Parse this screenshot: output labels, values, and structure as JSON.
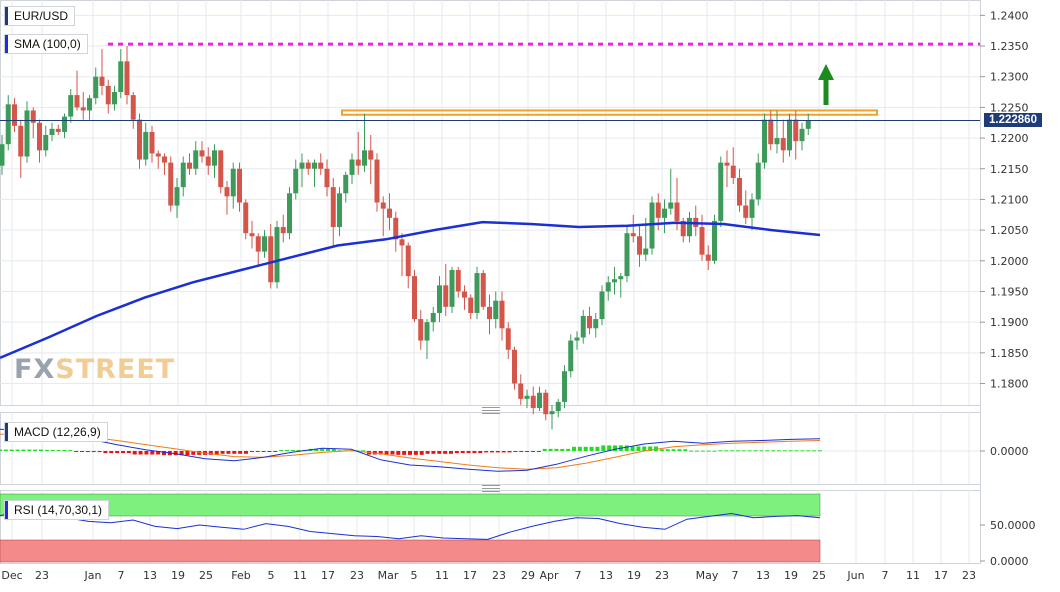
{
  "header": {
    "pair": "EUR/USD",
    "sma_label": "SMA (100,0)",
    "macd_label": "MACD (12,26,9)",
    "rsi_label": "RSI (14,70,30,1)",
    "current_price": "1.222860"
  },
  "logo": {
    "part1": "FX",
    "part2": "STREET"
  },
  "colors": {
    "bull": "#3d9a5a",
    "bear": "#d4564a",
    "sma": "#1a2fd6",
    "resistance_dotted": "#e628e6",
    "resistance_box": "#f0a12a",
    "arrow": "#1d8a1d",
    "price_line": "#1d3c78",
    "macd_line": "#1a2fd6",
    "signal_line": "#f07c1a",
    "hist_pos": "#22dd22",
    "hist_neg": "#ee1111",
    "rsi_line": "#1a2fd6",
    "rsi_ob": "#7ef07e",
    "rsi_os": "#f58a8a",
    "grid": "#e6e9ee"
  },
  "chart_data": [
    {
      "type": "candlestick",
      "title": "EUR/USD",
      "ylim": [
        1.1765,
        1.2425
      ],
      "y_ticks": [
        "1.2400",
        "1.2350",
        "1.2300",
        "1.2250",
        "1.2200",
        "1.2150",
        "1.2100",
        "1.2050",
        "1.2000",
        "1.1950",
        "1.1900",
        "1.1850",
        "1.1800"
      ],
      "x_ticks": [
        "Dec",
        "23",
        "Jan",
        "7",
        "13",
        "19",
        "25",
        "Feb",
        "5",
        "11",
        "17",
        "23",
        "Mar",
        "5",
        "11",
        "17",
        "23",
        "29",
        "Apr",
        "7",
        "13",
        "19",
        "23",
        "May",
        "7",
        "13",
        "19",
        "25",
        "Jun",
        "7",
        "11",
        "17",
        "23"
      ],
      "ohlc": [
        [
          1.2155,
          1.2205,
          1.214,
          1.219
        ],
        [
          1.219,
          1.227,
          1.218,
          1.2255
        ],
        [
          1.2255,
          1.2265,
          1.221,
          1.222
        ],
        [
          1.222,
          1.223,
          1.2135,
          1.217
        ],
        [
          1.217,
          1.226,
          1.216,
          1.2245
        ],
        [
          1.2245,
          1.225,
          1.22,
          1.2225
        ],
        [
          1.2225,
          1.223,
          1.216,
          1.218
        ],
        [
          1.218,
          1.222,
          1.217,
          1.2205
        ],
        [
          1.2205,
          1.2225,
          1.2195,
          1.2215
        ],
        [
          1.2215,
          1.2222,
          1.2205,
          1.221
        ],
        [
          1.221,
          1.224,
          1.22,
          1.2235
        ],
        [
          1.2235,
          1.228,
          1.2225,
          1.227
        ],
        [
          1.227,
          1.231,
          1.2245,
          1.225
        ],
        [
          1.225,
          1.2275,
          1.223,
          1.2245
        ],
        [
          1.2245,
          1.227,
          1.223,
          1.2265
        ],
        [
          1.2265,
          1.2315,
          1.2255,
          1.23
        ],
        [
          1.23,
          1.2345,
          1.227,
          1.2285
        ],
        [
          1.2285,
          1.2295,
          1.224,
          1.2255
        ],
        [
          1.2255,
          1.2285,
          1.2245,
          1.2275
        ],
        [
          1.2275,
          1.2345,
          1.2265,
          1.2325
        ],
        [
          1.2325,
          1.235,
          1.2255,
          1.227
        ],
        [
          1.227,
          1.2275,
          1.2215,
          1.223
        ],
        [
          1.223,
          1.224,
          1.215,
          1.2165
        ],
        [
          1.2165,
          1.2225,
          1.2155,
          1.221
        ],
        [
          1.221,
          1.222,
          1.216,
          1.2175
        ],
        [
          1.2175,
          1.218,
          1.215,
          1.217
        ],
        [
          1.217,
          1.2175,
          1.214,
          1.216
        ],
        [
          1.216,
          1.217,
          1.208,
          1.209
        ],
        [
          1.209,
          1.2135,
          1.207,
          1.212
        ],
        [
          1.212,
          1.217,
          1.2105,
          1.216
        ],
        [
          1.216,
          1.2175,
          1.214,
          1.215
        ],
        [
          1.215,
          1.2195,
          1.214,
          1.218
        ],
        [
          1.218,
          1.2195,
          1.216,
          1.217
        ],
        [
          1.217,
          1.2185,
          1.214,
          1.2155
        ],
        [
          1.2155,
          1.219,
          1.2135,
          1.218
        ],
        [
          1.218,
          1.218,
          1.211,
          1.212
        ],
        [
          1.212,
          1.213,
          1.2075,
          1.2105
        ],
        [
          1.2105,
          1.216,
          1.2085,
          1.215
        ],
        [
          1.215,
          1.216,
          1.208,
          1.2095
        ],
        [
          1.2095,
          1.21,
          1.2035,
          1.2045
        ],
        [
          1.2045,
          1.2065,
          1.202,
          1.204
        ],
        [
          1.204,
          1.2045,
          1.199,
          1.2015
        ],
        [
          1.2015,
          1.205,
          1.2005,
          1.204
        ],
        [
          1.204,
          1.206,
          1.1955,
          1.1965
        ],
        [
          1.1965,
          1.2065,
          1.1955,
          1.2055
        ],
        [
          1.2055,
          1.2075,
          1.203,
          1.2045
        ],
        [
          1.2045,
          1.212,
          1.2035,
          1.211
        ],
        [
          1.211,
          1.2165,
          1.21,
          1.215
        ],
        [
          1.215,
          1.2175,
          1.212,
          1.216
        ],
        [
          1.216,
          1.2165,
          1.214,
          1.215
        ],
        [
          1.215,
          1.2165,
          1.212,
          1.216
        ],
        [
          1.216,
          1.2175,
          1.214,
          1.215
        ],
        [
          1.215,
          1.2165,
          1.2105,
          1.212
        ],
        [
          1.212,
          1.2135,
          1.2025,
          1.2055
        ],
        [
          1.2055,
          1.212,
          1.204,
          1.211
        ],
        [
          1.211,
          1.2145,
          1.2095,
          1.214
        ],
        [
          1.214,
          1.2175,
          1.2125,
          1.2165
        ],
        [
          1.2165,
          1.221,
          1.214,
          1.2155
        ],
        [
          1.2155,
          1.224,
          1.2145,
          1.218
        ],
        [
          1.218,
          1.2205,
          1.2125,
          1.2165
        ],
        [
          1.2165,
          1.2175,
          1.208,
          1.2095
        ],
        [
          1.2095,
          1.2105,
          1.204,
          1.2085
        ],
        [
          1.2085,
          1.211,
          1.205,
          1.207
        ],
        [
          1.207,
          1.208,
          1.2015,
          1.2035
        ],
        [
          1.2035,
          1.2045,
          1.1975,
          1.2025
        ],
        [
          1.2025,
          1.203,
          1.1955,
          1.1975
        ],
        [
          1.1975,
          1.1985,
          1.19,
          1.1905
        ],
        [
          1.1905,
          1.192,
          1.1855,
          1.187
        ],
        [
          1.187,
          1.1905,
          1.184,
          1.19
        ],
        [
          1.19,
          1.1925,
          1.1885,
          1.1915
        ],
        [
          1.1915,
          1.1975,
          1.19,
          1.196
        ],
        [
          1.196,
          1.1995,
          1.191,
          1.1925
        ],
        [
          1.1925,
          1.199,
          1.1915,
          1.1985
        ],
        [
          1.1985,
          1.199,
          1.194,
          1.195
        ],
        [
          1.195,
          1.196,
          1.192,
          1.194
        ],
        [
          1.194,
          1.1945,
          1.1905,
          1.1915
        ],
        [
          1.1915,
          1.199,
          1.1905,
          1.198
        ],
        [
          1.198,
          1.1985,
          1.192,
          1.1925
        ],
        [
          1.1925,
          1.1945,
          1.188,
          1.1905
        ],
        [
          1.1905,
          1.195,
          1.189,
          1.1935
        ],
        [
          1.1935,
          1.195,
          1.187,
          1.189
        ],
        [
          1.189,
          1.19,
          1.184,
          1.1855
        ],
        [
          1.1855,
          1.186,
          1.179,
          1.18
        ],
        [
          1.18,
          1.1815,
          1.1765,
          1.1775
        ],
        [
          1.1775,
          1.179,
          1.176,
          1.178
        ],
        [
          1.178,
          1.1795,
          1.175,
          1.176
        ],
        [
          1.176,
          1.1795,
          1.1755,
          1.1785
        ],
        [
          1.1785,
          1.179,
          1.174,
          1.175
        ],
        [
          1.175,
          1.1765,
          1.1725,
          1.1755
        ],
        [
          1.1755,
          1.1775,
          1.1745,
          1.177
        ],
        [
          1.177,
          1.183,
          1.176,
          1.182
        ],
        [
          1.182,
          1.188,
          1.181,
          1.187
        ],
        [
          1.187,
          1.1885,
          1.1855,
          1.1875
        ],
        [
          1.1875,
          1.192,
          1.1865,
          1.191
        ],
        [
          1.191,
          1.1925,
          1.188,
          1.189
        ],
        [
          1.189,
          1.1915,
          1.1875,
          1.1905
        ],
        [
          1.1905,
          1.196,
          1.1895,
          1.195
        ],
        [
          1.195,
          1.1975,
          1.1935,
          1.1965
        ],
        [
          1.1965,
          1.199,
          1.1945,
          1.197
        ],
        [
          1.197,
          1.198,
          1.194,
          1.1975
        ],
        [
          1.1975,
          1.2055,
          1.1965,
          1.2045
        ],
        [
          1.2045,
          1.2075,
          1.203,
          1.204
        ],
        [
          1.204,
          1.206,
          1.199,
          1.201
        ],
        [
          1.201,
          1.207,
          1.2,
          1.202
        ],
        [
          1.202,
          1.2105,
          1.201,
          1.2095
        ],
        [
          1.2095,
          1.211,
          1.205,
          1.207
        ],
        [
          1.207,
          1.21,
          1.2045,
          1.2085
        ],
        [
          1.2085,
          1.215,
          1.2075,
          1.2095
        ],
        [
          1.2095,
          1.2135,
          1.205,
          1.2065
        ],
        [
          1.2065,
          1.207,
          1.203,
          1.204
        ],
        [
          1.204,
          1.208,
          1.203,
          1.207
        ],
        [
          1.207,
          1.209,
          1.204,
          1.2055
        ],
        [
          1.2055,
          1.2075,
          1.2,
          1.201
        ],
        [
          1.201,
          1.2025,
          1.1985,
          1.2
        ],
        [
          1.2,
          1.2075,
          1.1995,
          1.2065
        ],
        [
          1.2065,
          1.217,
          1.2055,
          1.216
        ],
        [
          1.216,
          1.218,
          1.212,
          1.2155
        ],
        [
          1.2155,
          1.2185,
          1.2125,
          1.2135
        ],
        [
          1.2135,
          1.215,
          1.208,
          1.209
        ],
        [
          1.209,
          1.2115,
          1.206,
          1.207
        ],
        [
          1.207,
          1.211,
          1.205,
          1.21
        ],
        [
          1.21,
          1.2175,
          1.209,
          1.216
        ],
        [
          1.216,
          1.224,
          1.215,
          1.223
        ],
        [
          1.223,
          1.2245,
          1.218,
          1.219
        ],
        [
          1.219,
          1.2245,
          1.2175,
          1.22
        ],
        [
          1.22,
          1.223,
          1.216,
          1.218
        ],
        [
          1.218,
          1.224,
          1.217,
          1.223
        ],
        [
          1.223,
          1.2245,
          1.2165,
          1.2195
        ],
        [
          1.2195,
          1.2225,
          1.218,
          1.2215
        ],
        [
          1.2215,
          1.224,
          1.2205,
          1.2229
        ]
      ],
      "series": [
        {
          "name": "SMA (100,0)",
          "values": [
            1.1842,
            1.1875,
            1.191,
            1.194,
            1.1965,
            1.1985,
            1.2005,
            1.2025,
            1.2035,
            1.205,
            1.2063,
            1.206,
            1.2055,
            1.2057,
            1.2062,
            1.206,
            1.205,
            1.2042
          ]
        }
      ],
      "annotations": {
        "resistance_dotted": 1.2353,
        "resistance_zone": [
          1.2238,
          1.2245
        ],
        "last_price": 1.22286
      }
    },
    {
      "type": "line",
      "title": "MACD (12,26,9)",
      "y_ticks": [
        "0.0000"
      ],
      "series": [
        {
          "name": "MACD",
          "values": [
            0.0062,
            0.0058,
            0.005,
            0.0035,
            0.0018,
            0.0003,
            -0.0008,
            -0.0022,
            -0.0028,
            -0.0018,
            -0.0003,
            0.0008,
            0.0005,
            -0.0025,
            -0.004,
            -0.0045,
            -0.0052,
            -0.0058,
            -0.0055,
            -0.0038,
            -0.0015,
            0.0005,
            0.002,
            0.0028,
            0.0022,
            0.0028,
            0.003,
            0.0033,
            0.0035
          ]
        },
        {
          "name": "Signal",
          "values": [
            0.0048,
            0.005,
            0.0047,
            0.004,
            0.003,
            0.0018,
            0.0006,
            -0.0006,
            -0.0016,
            -0.0018,
            -0.0012,
            -0.0004,
            0.0001,
            -0.0008,
            -0.002,
            -0.003,
            -0.004,
            -0.0048,
            -0.0052,
            -0.0048,
            -0.0035,
            -0.0018,
            0.0,
            0.0012,
            0.0018,
            0.0022,
            0.0025,
            0.0028,
            0.003
          ]
        },
        {
          "name": "Histogram",
          "values": [
            0.0004,
            0.0004,
            0.0003,
            -0.0003,
            -0.0006,
            -0.001,
            -0.0012,
            -0.0011,
            -0.0008,
            -0.0002,
            0.0003,
            0.0006,
            0.0002,
            -0.001,
            -0.0011,
            -0.0008,
            -0.0006,
            -0.0004,
            -0.0002,
            0.0006,
            0.0012,
            0.0016,
            0.0013,
            0.0005,
            0.0001,
            0.0002,
            0.0002,
            0.0002,
            0.0002
          ]
        }
      ]
    },
    {
      "type": "line",
      "title": "RSI (14,70,30,1)",
      "y_ticks": [
        "50.0000",
        "0.0000"
      ],
      "ylim": [
        0,
        100
      ],
      "series": [
        {
          "name": "RSI",
          "values": [
            63,
            70,
            66,
            60,
            55,
            53,
            57,
            48,
            45,
            50,
            47,
            44,
            52,
            48,
            41,
            38,
            35,
            34,
            31,
            35,
            32,
            31,
            30,
            40,
            48,
            55,
            60,
            59,
            52,
            47,
            44,
            58,
            62,
            66,
            60,
            62,
            63,
            60
          ]
        }
      ]
    }
  ]
}
